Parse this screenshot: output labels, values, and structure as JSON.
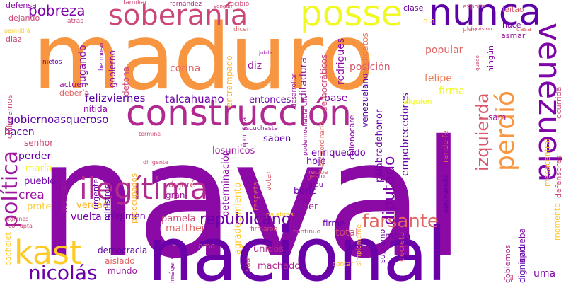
{
  "wordcloud": {
    "words": [
      {
        "text": "naval",
        "color": "#8b0aa5"
      },
      {
        "text": "maduro",
        "color": "#f89540"
      },
      {
        "text": "nacional",
        "color": "#6a00a8"
      },
      {
        "text": "construcción",
        "color": "#b12a90"
      },
      {
        "text": "posse",
        "color": "#f0f921"
      },
      {
        "text": "soberanía",
        "color": "#cc4778"
      },
      {
        "text": "nunca",
        "color": "#5c01a6"
      },
      {
        "text": "venezuela",
        "color": "#7e03a8"
      },
      {
        "text": "perdió",
        "color": "#f89540"
      },
      {
        "text": "kast",
        "color": "#fdca26"
      },
      {
        "text": "ilegítima",
        "color": "#b12a90"
      },
      {
        "text": "republicano",
        "color": "#6a00a8"
      },
      {
        "text": "farsante",
        "color": "#e16462"
      },
      {
        "text": "nicolás",
        "color": "#6a00a8"
      },
      {
        "text": "política",
        "color": "#9c179e"
      },
      {
        "text": "diputado",
        "color": "#7e03a8"
      },
      {
        "text": "izquierda",
        "color": "#d8576b"
      },
      {
        "text": "felizviernes",
        "color": "#5c01a6"
      },
      {
        "text": "talcahuano",
        "color": "#6a00a8"
      },
      {
        "text": "gobiernoasqueroso",
        "color": "#5c01a6"
      },
      {
        "text": "pobreza",
        "color": "#7e03a8"
      },
      {
        "text": "jugando",
        "color": "#8b0aa5"
      },
      {
        "text": "gobierno",
        "color": "#8b0aa5"
      },
      {
        "text": "entonces",
        "color": "#6a00a8"
      },
      {
        "text": "base",
        "color": "#7e03a8"
      },
      {
        "text": "ditadura",
        "color": "#9c179e"
      },
      {
        "text": "rodrigues",
        "color": "#8b0aa5"
      },
      {
        "text": "posición",
        "color": "#d8576b"
      },
      {
        "text": "popular",
        "color": "#e16462"
      },
      {
        "text": "firma",
        "color": "#f0f921"
      },
      {
        "text": "felipe",
        "color": "#ed7953"
      },
      {
        "text": "empobrecedores",
        "color": "#6a00a8"
      },
      {
        "text": "enriquecido",
        "color": "#6a00a8"
      },
      {
        "text": "losunicos",
        "color": "#9c179e"
      },
      {
        "text": "saben",
        "color": "#5c01a6"
      },
      {
        "text": "palabradehonor",
        "color": "#6a00a8"
      },
      {
        "text": "venezuelano",
        "color": "#5c01a6"
      },
      {
        "text": "candidatos",
        "color": "#ed7953"
      },
      {
        "text": "democráticos",
        "color": "#cc4778"
      },
      {
        "text": "entrampado",
        "color": "#fdb42f"
      },
      {
        "text": "determinación",
        "color": "#8b0aa5"
      },
      {
        "text": "agradecimiento",
        "color": "#fdca26"
      },
      {
        "text": "corina",
        "color": "#e16462"
      },
      {
        "text": "diz",
        "color": "#9c179e"
      },
      {
        "text": "detona",
        "color": "#cc4778"
      },
      {
        "text": "nítida",
        "color": "#8b0aa5"
      },
      {
        "text": "hacen",
        "color": "#5c01a6"
      },
      {
        "text": "senhor",
        "color": "#cc4778"
      },
      {
        "text": "perder",
        "color": "#6a00a8"
      },
      {
        "text": "maría",
        "color": "#f0f921"
      },
      {
        "text": "pueblo",
        "color": "#6a00a8"
      },
      {
        "text": "crea",
        "color": "#9c179e"
      },
      {
        "text": "prote",
        "color": "#fdca26"
      },
      {
        "text": "verdad",
        "color": "#fdb42f"
      },
      {
        "text": "vuelta",
        "color": "#7e03a8"
      },
      {
        "text": "régimen",
        "color": "#6a00a8"
      },
      {
        "text": "democracia",
        "color": "#5c01a6"
      },
      {
        "text": "aislado",
        "color": "#e16462"
      },
      {
        "text": "mundo",
        "color": "#9c179e"
      },
      {
        "text": "matthei",
        "color": "#e16462"
      },
      {
        "text": "pamela",
        "color": "#cc4778"
      },
      {
        "text": "unidos",
        "color": "#b12a90"
      },
      {
        "text": "machado",
        "color": "#b12a90"
      },
      {
        "text": "maya",
        "color": "#6a00a8"
      },
      {
        "text": "firme",
        "color": "#6a00a8"
      },
      {
        "text": "total",
        "color": "#cc4778"
      },
      {
        "text": "bóric",
        "color": "#6a00a8"
      },
      {
        "text": "ciper",
        "color": "#9c179e"
      },
      {
        "text": "hoje",
        "color": "#6a00a8"
      },
      {
        "text": "gran",
        "color": "#9c179e"
      },
      {
        "text": "dejaré",
        "color": "#cc4778"
      },
      {
        "text": "aprueba",
        "color": "#7e03a8"
      },
      {
        "text": "dignidad",
        "color": "#5c01a6"
      },
      {
        "text": "uma",
        "color": "#7e03a8"
      },
      {
        "text": "sam",
        "color": "#9c179e"
      },
      {
        "text": "defensa",
        "color": "#8b0aa5"
      },
      {
        "text": "dejando",
        "color": "#cc4778"
      },
      {
        "text": "diaz",
        "color": "#cc4778"
      },
      {
        "text": "hace",
        "color": "#7e03a8"
      },
      {
        "text": "asmar",
        "color": "#9c179e"
      },
      {
        "text": "clase",
        "color": "#6a00a8"
      },
      {
        "text": "leitao",
        "color": "#d8576b"
      },
      {
        "text": "dia",
        "color": "#fdca26"
      },
      {
        "text": "ningún",
        "color": "#8b0aa5"
      },
      {
        "text": "actúen",
        "color": "#9c179e"
      },
      {
        "text": "debería",
        "color": "#e16462"
      },
      {
        "text": "chilevamos",
        "color": "#cc4778"
      },
      {
        "text": "bachelet",
        "color": "#fdca26"
      },
      {
        "text": "ama",
        "color": "#cc4778"
      },
      {
        "text": "sua",
        "color": "#cc4778"
      },
      {
        "text": "votar",
        "color": "#d8576b"
      },
      {
        "text": "respeta",
        "color": "#d8576b"
      },
      {
        "text": "necesita",
        "color": "#9c179e"
      },
      {
        "text": "urgente",
        "color": "#6a00a8"
      },
      {
        "text": "ministros",
        "color": "#5c01a6"
      },
      {
        "text": "preocupados",
        "color": "#fdb42f"
      },
      {
        "text": "ocurrida",
        "color": "#cc4778"
      },
      {
        "text": "mesacentral",
        "color": "#fdb42f"
      },
      {
        "text": "momento",
        "color": "#fdca26"
      },
      {
        "text": "defensores",
        "color": "#cc4778"
      },
      {
        "text": "decreto",
        "color": "#d8576b"
      },
      {
        "text": "supremo",
        "color": "#6a00a8"
      },
      {
        "text": "gobiernos",
        "color": "#b12a90"
      },
      {
        "text": "alguien",
        "color": "#f0f921"
      },
      {
        "text": "expone",
        "color": "#d8576b"
      },
      {
        "text": "plan",
        "color": "#e16462"
      },
      {
        "text": "casa",
        "color": "#e16462"
      },
      {
        "text": "dicen",
        "color": "#e16462"
      },
      {
        "text": "recibió",
        "color": "#cc4778"
      },
      {
        "text": "fernández",
        "color": "#b12a90"
      },
      {
        "text": "familiar",
        "color": "#cc4778"
      },
      {
        "text": "atrás",
        "color": "#cc4778"
      },
      {
        "text": "nietos",
        "color": "#6a00a8"
      },
      {
        "text": "hermoso",
        "color": "#8b0aa5"
      },
      {
        "text": "chilenocare",
        "color": "#8b0aa5"
      },
      {
        "text": "randolfe",
        "color": "#e16462"
      },
      {
        "text": "apoyando",
        "color": "#6a00a8"
      },
      {
        "text": "desarrollar",
        "color": "#9c179e"
      },
      {
        "text": "escuchaste",
        "color": "#9c179e"
      },
      {
        "text": "hipocresía",
        "color": "#9c179e"
      },
      {
        "text": "extraordinario",
        "color": "#e16462"
      },
      {
        "text": "podemoshablarchv",
        "color": "#9c179e"
      },
      {
        "text": "gesto",
        "color": "#cc4778"
      },
      {
        "text": "grau",
        "color": "#6a00a8"
      },
      {
        "text": "recibe",
        "color": "#e16462"
      },
      {
        "text": "firmaron",
        "color": "#cc4778"
      },
      {
        "text": "continuo",
        "color": "#cc4778"
      },
      {
        "text": "contar",
        "color": "#fdb42f"
      },
      {
        "text": "simplemente",
        "color": "#fdb42f"
      },
      {
        "text": "mil",
        "color": "#cc4778"
      },
      {
        "text": "permitirá",
        "color": "#fdca26"
      },
      {
        "text": "regiones",
        "color": "#cc4778"
      },
      {
        "text": "corrupta",
        "color": "#cc4778"
      },
      {
        "text": "termine",
        "color": "#cc4778"
      },
      {
        "text": "dirigente",
        "color": "#cc4778"
      },
      {
        "text": "imágenes",
        "color": "#8b0aa5"
      },
      {
        "text": "palabras",
        "color": "#fdca26"
      },
      {
        "text": "vengan",
        "color": "#cc4778"
      },
      {
        "text": "quedó",
        "color": "#cc4778"
      },
      {
        "text": "chavismo",
        "color": "#cc4778"
      },
      {
        "text": "jubila",
        "color": "#9c179e"
      }
    ]
  }
}
